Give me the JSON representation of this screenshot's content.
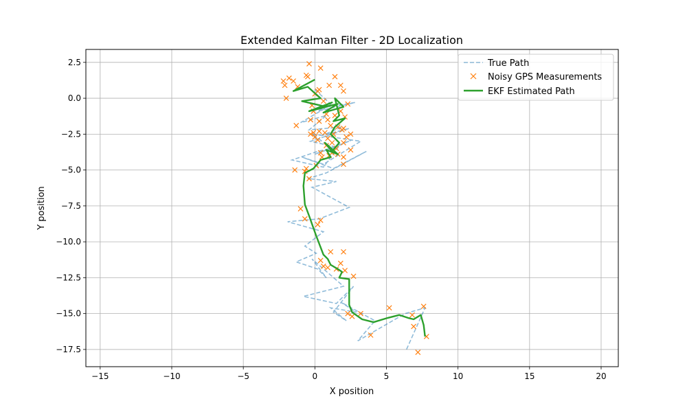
{
  "chart_data": {
    "type": "line",
    "title": "Extended Kalman Filter - 2D Localization",
    "xlabel": "X position",
    "ylabel": "Y position",
    "xlim": [
      -16,
      21.2
    ],
    "ylim": [
      -18.7,
      3.4
    ],
    "xticks": [
      -15,
      -10,
      -5,
      0,
      5,
      10,
      15,
      20
    ],
    "xtick_labels": [
      "−15",
      "−10",
      "−5",
      "0",
      "5",
      "10",
      "15",
      "20"
    ],
    "yticks": [
      2.5,
      0.0,
      -2.5,
      -5.0,
      -7.5,
      -10.0,
      -12.5,
      -15.0,
      -17.5
    ],
    "ytick_labels": [
      "2.5",
      "0.0",
      "−2.5",
      "−5.0",
      "−7.5",
      "−10.0",
      "−12.5",
      "−15.0",
      "−17.5"
    ],
    "grid": true,
    "legend_position": "upper right",
    "series": [
      {
        "name": "True Path",
        "style": "dashed-line",
        "color": "#1f77b4",
        "x": [
          0,
          1.1,
          0.2,
          2.8,
          0.9,
          -1.0,
          0.8,
          -0.4,
          1.9,
          0.5,
          2.4,
          -0.3,
          1.5,
          0.2,
          -1.6,
          0.6,
          1.7,
          0.0,
          2.6,
          1.2,
          -0.2,
          3.2,
          0.6,
          -0.9,
          1.3,
          3.6,
          0.8,
          -0.5,
          1.5,
          -0.2,
          2.4,
          0.3,
          -1.9,
          0.6,
          -0.7,
          0.1,
          -1.3,
          0.2,
          0.8,
          -0.2,
          2.0,
          -0.8,
          1.5,
          2.7,
          1.3,
          2.2,
          1.1,
          2.9,
          1.8,
          4.2,
          3.0,
          6.3,
          7.7,
          6.4
        ],
        "y": [
          0.6,
          -0.4,
          -0.9,
          -0.3,
          -0.6,
          -1.7,
          -1.2,
          -2.2,
          -2.0,
          -2.6,
          -2.1,
          -3.0,
          -3.4,
          -3.7,
          -4.3,
          -4.8,
          -3.3,
          -3.9,
          -2.9,
          -3.5,
          -2.5,
          -3.0,
          -4.6,
          -4.1,
          -4.9,
          -3.7,
          -5.2,
          -5.6,
          -5.8,
          -6.2,
          -7.6,
          -8.4,
          -8.6,
          -9.3,
          -10.3,
          -10.8,
          -11.4,
          -11.9,
          -12.5,
          -11.2,
          -13.1,
          -13.8,
          -14.3,
          -13.1,
          -14.9,
          -15.5,
          -14.6,
          -14.9,
          -14.2,
          -15.5,
          -16.9,
          -15.0,
          -14.6,
          -17.5
        ]
      },
      {
        "name": "Noisy GPS Measurements",
        "style": "x-markers",
        "color": "#ff7f0e",
        "x": [
          -0.4,
          0.4,
          -2.2,
          -2.1,
          -1.8,
          -1.5,
          -1.2,
          -2.0,
          -0.6,
          -0.5,
          1.4,
          0.3,
          1.0,
          1.8,
          2.0,
          2.3,
          0.0,
          0.2,
          0.6,
          -0.2,
          -0.1,
          0.8,
          1.4,
          1.8,
          2.1,
          0.3,
          0.9,
          1.1,
          1.6,
          2.0,
          -0.3,
          -0.1,
          -1.3,
          0.3,
          0.7,
          1.3,
          1.9,
          2.2,
          2.5,
          0.0,
          -0.3,
          0.2,
          0.8,
          1.5,
          2.0,
          2.5,
          0.4,
          1.2,
          1.6,
          1.0,
          2.0,
          -1.4,
          -0.6,
          -0.4,
          -0.7,
          0.1,
          0.5,
          -1.0,
          -0.7,
          0.2,
          0.4,
          1.1,
          2.0,
          0.4,
          0.6,
          0.9,
          1.8,
          1.5,
          2.1,
          2.7,
          2.3,
          3.2,
          2.6,
          3.9,
          5.2,
          6.8,
          7.6,
          6.9,
          7.2,
          7.8,
          1.2,
          0.9,
          2.0
        ],
        "y": [
          2.4,
          2.1,
          1.2,
          0.9,
          1.4,
          1.2,
          0.8,
          0.0,
          1.6,
          1.5,
          1.5,
          0.6,
          0.9,
          0.9,
          0.5,
          -0.4,
          0.3,
          0.5,
          -0.2,
          -0.5,
          -0.9,
          -1.1,
          -1.2,
          -0.9,
          -1.3,
          -1.6,
          -1.5,
          -1.9,
          -2.0,
          -2.1,
          -1.5,
          -2.4,
          -1.9,
          -2.3,
          -2.4,
          -2.5,
          -2.2,
          -2.7,
          -2.5,
          -2.7,
          -2.5,
          -2.9,
          -3.3,
          -3.5,
          -3.1,
          -3.6,
          -3.8,
          -3.8,
          -3.9,
          -4.0,
          -4.1,
          -5.0,
          -4.9,
          -5.6,
          -5.1,
          -4.7,
          -4.1,
          -7.7,
          -8.4,
          -8.8,
          -8.5,
          -10.7,
          -10.7,
          -11.3,
          -11.7,
          -11.8,
          -11.5,
          -11.9,
          -12.0,
          -12.4,
          -15.0,
          -15.0,
          -15.2,
          -16.5,
          -14.6,
          -15.1,
          -14.5,
          -15.9,
          -17.7,
          -16.6,
          -3.1,
          -2.8,
          -4.6
        ]
      },
      {
        "name": "EKF Estimated Path",
        "style": "solid-line",
        "color": "#2ca02c",
        "x": [
          0.0,
          -1.5,
          -0.5,
          0.4,
          -0.9,
          0.8,
          -0.4,
          1.2,
          0.2,
          1.6,
          0.6,
          2.0,
          1.4,
          1.7,
          1.3,
          2.1,
          1.4,
          1.1,
          1.7,
          1.2,
          0.7,
          1.6,
          0.8,
          1.1,
          0.4,
          -0.1,
          -0.7,
          -0.8,
          -0.7,
          -0.4,
          0.1,
          0.6,
          0.9,
          1.1,
          1.6,
          1.9,
          1.7,
          2.4,
          2.4,
          2.6,
          3.3,
          4.1,
          5.1,
          5.9,
          6.5,
          6.9,
          7.4,
          7.6,
          7.7
        ],
        "y": [
          1.3,
          0.5,
          0.8,
          0.0,
          -0.2,
          -0.6,
          -0.9,
          -0.3,
          -0.7,
          -0.4,
          -1.0,
          -0.6,
          0.0,
          -1.2,
          -1.6,
          -1.4,
          -2.0,
          -2.5,
          -3.1,
          -3.7,
          -3.1,
          -3.9,
          -3.6,
          -4.1,
          -4.3,
          -4.9,
          -5.2,
          -6.1,
          -7.4,
          -8.2,
          -9.6,
          -10.9,
          -11.2,
          -11.6,
          -11.9,
          -12.1,
          -12.5,
          -12.6,
          -14.4,
          -14.9,
          -15.4,
          -15.6,
          -15.3,
          -15.1,
          -15.3,
          -15.4,
          -15.1,
          -15.8,
          -16.6
        ]
      }
    ]
  }
}
